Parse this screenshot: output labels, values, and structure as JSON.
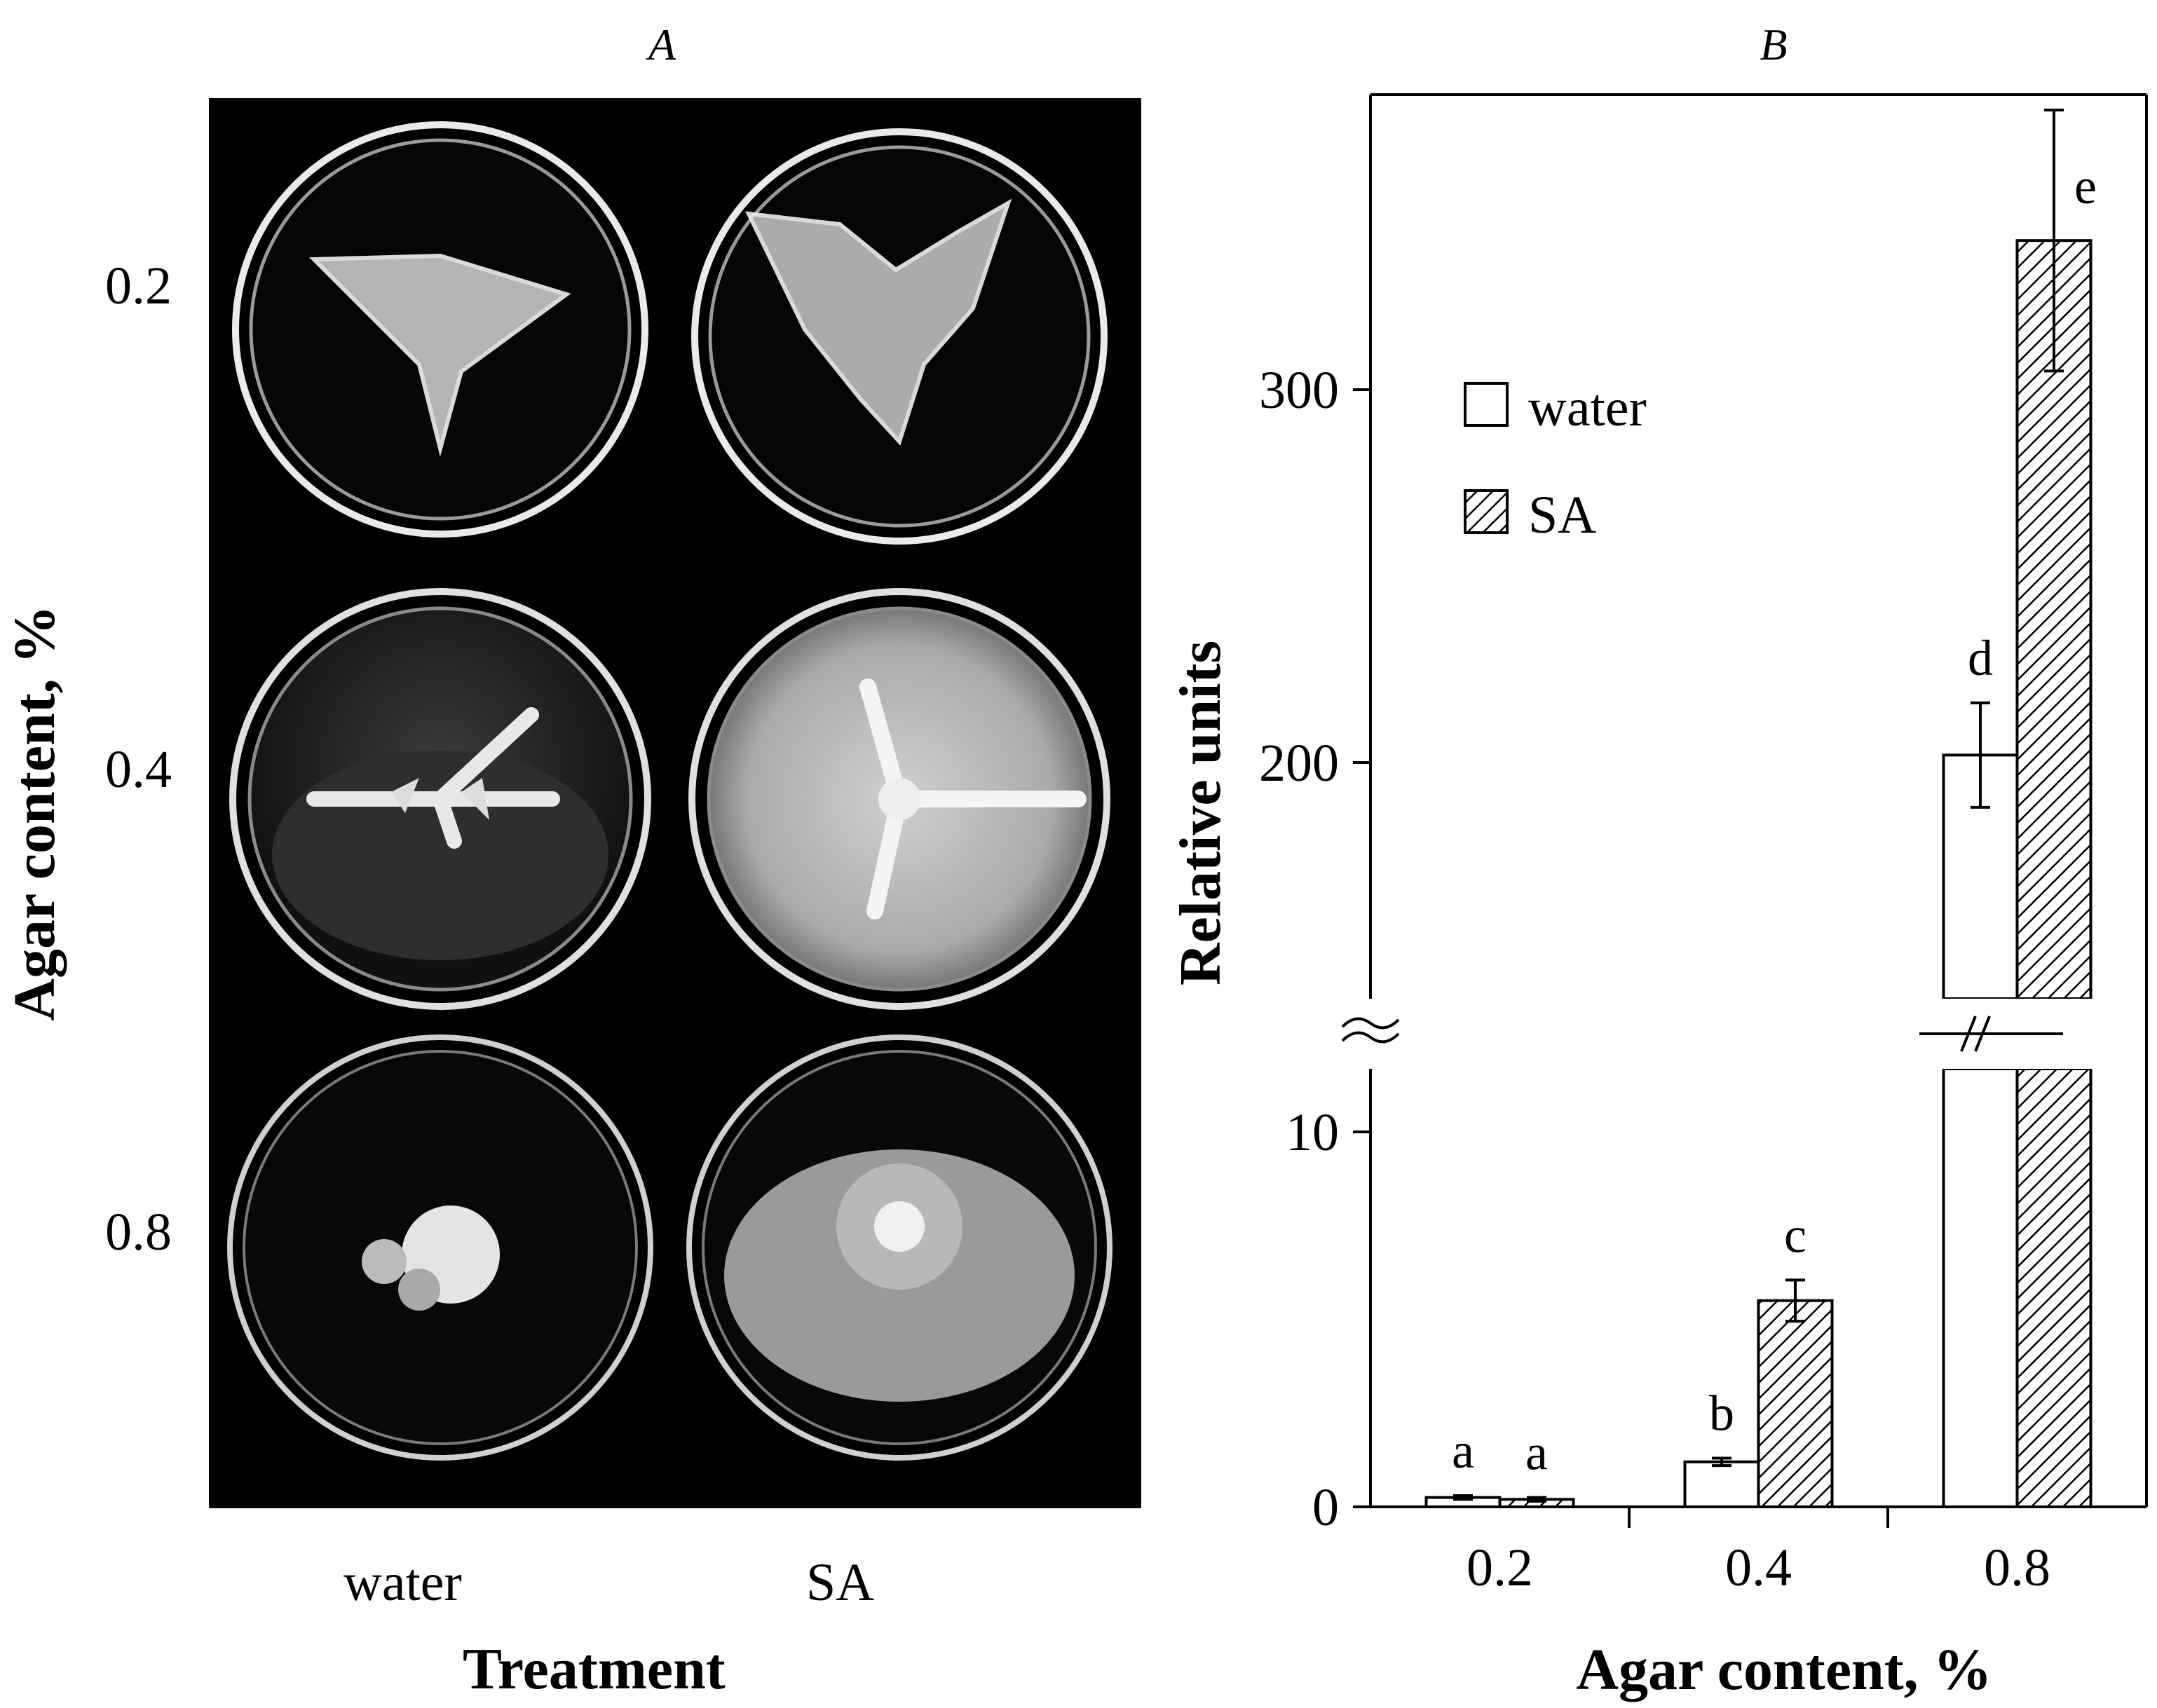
{
  "panel_a": {
    "letter": "A",
    "row_labels": [
      "0.2",
      "0.4",
      "0.8"
    ],
    "col_labels": [
      "water",
      "SA"
    ],
    "xlabel": "Treatment",
    "ylabel": "Agar content, %"
  },
  "colors": {
    "background": "#000000",
    "bar_outline": "#000000",
    "hatch": "#000000"
  },
  "chart_data": {
    "type": "bar",
    "panel_letter": "B",
    "categories": [
      "0.2",
      "0.4",
      "0.8"
    ],
    "series": [
      {
        "name": "water",
        "pattern": "open",
        "values": [
          0.25,
          1.2,
          202
        ],
        "errors": [
          0.05,
          0.1,
          14
        ]
      },
      {
        "name": "SA",
        "pattern": "hatched",
        "values": [
          0.2,
          5.5,
          340
        ],
        "errors": [
          0.05,
          0.55,
          35
        ]
      }
    ],
    "significance_letters": [
      [
        "a",
        "a"
      ],
      [
        "b",
        "c"
      ],
      [
        "d",
        "e"
      ]
    ],
    "xlabel": "Agar content, %",
    "ylabel": "Relative units",
    "y_axis": {
      "broken": true,
      "lower_segment": {
        "range": [
          0,
          10
        ],
        "ticks": [
          0,
          10
        ]
      },
      "upper_segment": {
        "range": [
          130,
          375
        ],
        "ticks": [
          200,
          300
        ]
      }
    },
    "legend": {
      "placement": "upper-left",
      "entries": [
        "water",
        "SA"
      ]
    },
    "grid": false
  }
}
